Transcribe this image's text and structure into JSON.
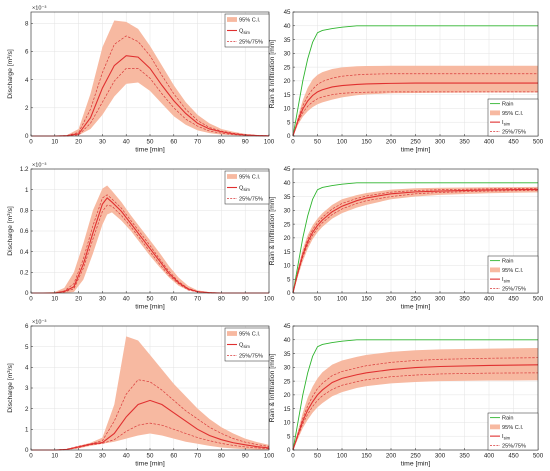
{
  "colors": {
    "band": "#f7b9a1",
    "median": "#e03030",
    "quart": "#d93a3a",
    "rain": "#2fb52f",
    "axis": "#262626",
    "grid": "#e3e3e3"
  },
  "chart_data": [
    {
      "type": "area",
      "panel": "a",
      "ylabel": "Discharge [m³/s]",
      "xlabel": "time [min]",
      "exponent": "×10⁻³",
      "xlim": [
        0,
        100
      ],
      "ylim": [
        0,
        8.8
      ],
      "xticks": [
        0,
        10,
        20,
        30,
        40,
        50,
        60,
        70,
        80,
        90,
        100
      ],
      "yticks": [
        0,
        2,
        4,
        6,
        8
      ],
      "legend": [
        "95% C.I.",
        "Q",
        "25%/75%"
      ],
      "legend_sub": "sim",
      "x": [
        0,
        10,
        15,
        20,
        25,
        30,
        35,
        40,
        45,
        50,
        55,
        60,
        65,
        70,
        75,
        80,
        85,
        90,
        95,
        100
      ],
      "series": [
        {
          "role": "ci_low",
          "values": [
            0,
            0,
            0,
            0.05,
            0.5,
            1.5,
            2.8,
            3.7,
            3.8,
            3.2,
            2.3,
            1.4,
            0.8,
            0.4,
            0.2,
            0.1,
            0.05,
            0.02,
            0,
            0
          ]
        },
        {
          "role": "q25",
          "values": [
            0,
            0,
            0,
            0.08,
            0.9,
            2.4,
            3.9,
            4.8,
            4.8,
            4.1,
            3.0,
            2.0,
            1.2,
            0.7,
            0.35,
            0.2,
            0.1,
            0.05,
            0.02,
            0
          ]
        },
        {
          "role": "median",
          "values": [
            0,
            0,
            0.02,
            0.15,
            1.3,
            3.4,
            5.0,
            5.7,
            5.6,
            4.8,
            3.6,
            2.5,
            1.6,
            0.9,
            0.5,
            0.3,
            0.15,
            0.07,
            0.03,
            0.01
          ]
        },
        {
          "role": "q75",
          "values": [
            0,
            0,
            0.03,
            0.25,
            1.9,
            4.5,
            6.5,
            7.1,
            6.7,
            5.7,
            4.3,
            3.0,
            1.9,
            1.1,
            0.6,
            0.35,
            0.2,
            0.1,
            0.04,
            0.02
          ]
        },
        {
          "role": "ci_high",
          "values": [
            0,
            0,
            0.05,
            0.5,
            3.0,
            6.3,
            8.2,
            8.1,
            7.6,
            6.4,
            5.0,
            3.6,
            2.4,
            1.5,
            0.9,
            0.5,
            0.3,
            0.15,
            0.07,
            0.03
          ]
        }
      ]
    },
    {
      "type": "line",
      "panel": "b",
      "ylabel": "Rain & Infiltration [mm]",
      "xlabel": "time [min]",
      "xlim": [
        0,
        500
      ],
      "ylim": [
        0,
        45
      ],
      "xticks": [
        0,
        50,
        100,
        150,
        200,
        250,
        300,
        350,
        400,
        450,
        500
      ],
      "yticks": [
        0,
        5,
        10,
        15,
        20,
        25,
        30,
        35,
        40,
        45
      ],
      "legend": [
        "Rain",
        "95% C.I.",
        "I",
        "25%/75%"
      ],
      "legend_sub": "sim",
      "x": [
        0,
        10,
        20,
        30,
        40,
        50,
        60,
        80,
        100,
        130,
        150,
        200,
        250,
        300,
        400,
        500
      ],
      "series": [
        {
          "role": "rain",
          "values": [
            0,
            10,
            20,
            28,
            34,
            37.5,
            38.3,
            39,
            39.5,
            40,
            40,
            40,
            40,
            40,
            40,
            40
          ]
        },
        {
          "role": "ci_low",
          "values": [
            0,
            4,
            7,
            9,
            10.5,
            11.5,
            12.2,
            13.2,
            14,
            14.8,
            15.1,
            15.5,
            15.6,
            15.7,
            15.8,
            15.8
          ]
        },
        {
          "role": "q25",
          "values": [
            0,
            5,
            8.5,
            10.8,
            12.4,
            13.5,
            14.2,
            15,
            15.5,
            15.8,
            15.9,
            16,
            16,
            16,
            16,
            16
          ]
        },
        {
          "role": "median",
          "values": [
            0,
            5.5,
            9.8,
            12.7,
            14.7,
            16,
            16.8,
            17.8,
            18.3,
            18.7,
            18.9,
            19.1,
            19.2,
            19.2,
            19.2,
            19.2
          ]
        },
        {
          "role": "q75",
          "values": [
            0,
            6,
            11,
            14.5,
            17,
            18.7,
            19.8,
            21,
            21.7,
            22.2,
            22.4,
            22.6,
            22.6,
            22.6,
            22.6,
            22.6
          ]
        },
        {
          "role": "ci_high",
          "values": [
            0,
            7,
            13,
            17.5,
            20.5,
            22.2,
            23.2,
            24.3,
            24.9,
            25.3,
            25.4,
            25.5,
            25.5,
            25.5,
            25.5,
            25.5
          ]
        }
      ]
    },
    {
      "type": "area",
      "panel": "c",
      "ylabel": "Discharge [m³/s]",
      "xlabel": "time [min]",
      "exponent": "×10⁻³",
      "xlim": [
        0,
        100
      ],
      "ylim": [
        0,
        1.2
      ],
      "xticks": [
        0,
        10,
        20,
        30,
        40,
        50,
        60,
        70,
        80,
        90,
        100
      ],
      "yticks": [
        0,
        0.2,
        0.4,
        0.6,
        0.8,
        1,
        1.2
      ],
      "legend": [
        "95% C.I.",
        "Q",
        "25%/75%"
      ],
      "legend_sub": "sim",
      "x": [
        0,
        10,
        14,
        18,
        22,
        26,
        30,
        32,
        34,
        38,
        42,
        46,
        50,
        54,
        58,
        62,
        66,
        70,
        75,
        80,
        100
      ],
      "series": [
        {
          "role": "ci_low",
          "values": [
            0,
            0,
            0,
            0.01,
            0.13,
            0.38,
            0.66,
            0.76,
            0.78,
            0.7,
            0.6,
            0.48,
            0.36,
            0.25,
            0.15,
            0.07,
            0.025,
            0.008,
            0,
            0,
            0
          ]
        },
        {
          "role": "q25",
          "values": [
            0,
            0,
            0.01,
            0.04,
            0.24,
            0.52,
            0.79,
            0.85,
            0.84,
            0.75,
            0.64,
            0.52,
            0.4,
            0.28,
            0.17,
            0.09,
            0.03,
            0.01,
            0,
            0,
            0
          ]
        },
        {
          "role": "median",
          "values": [
            0,
            0,
            0.015,
            0.06,
            0.28,
            0.58,
            0.86,
            0.92,
            0.88,
            0.79,
            0.67,
            0.55,
            0.43,
            0.31,
            0.19,
            0.1,
            0.04,
            0.012,
            0.003,
            0,
            0
          ]
        },
        {
          "role": "q75",
          "values": [
            0,
            0,
            0.02,
            0.09,
            0.33,
            0.65,
            0.92,
            0.95,
            0.91,
            0.82,
            0.7,
            0.58,
            0.46,
            0.33,
            0.21,
            0.11,
            0.045,
            0.015,
            0.004,
            0,
            0
          ]
        },
        {
          "role": "ci_high",
          "values": [
            0,
            0.01,
            0.05,
            0.2,
            0.48,
            0.8,
            1.01,
            1.04,
            0.99,
            0.88,
            0.75,
            0.63,
            0.51,
            0.39,
            0.26,
            0.15,
            0.07,
            0.025,
            0.008,
            0.002,
            0
          ]
        }
      ]
    },
    {
      "type": "line",
      "panel": "d",
      "ylabel": "Rain & Infiltration [mm]",
      "xlabel": "time [min]",
      "xlim": [
        0,
        500
      ],
      "ylim": [
        0,
        45
      ],
      "xticks": [
        0,
        50,
        100,
        150,
        200,
        250,
        300,
        350,
        400,
        450,
        500
      ],
      "yticks": [
        0,
        5,
        10,
        15,
        20,
        25,
        30,
        35,
        40,
        45
      ],
      "legend": [
        "Rain",
        "95% C.I.",
        "I",
        "25%/75%"
      ],
      "legend_sub": "sim",
      "x": [
        0,
        10,
        20,
        30,
        40,
        50,
        60,
        80,
        100,
        130,
        150,
        200,
        250,
        300,
        400,
        500
      ],
      "series": [
        {
          "role": "rain",
          "values": [
            0,
            10,
            20,
            28,
            34,
            37.5,
            38.3,
            39,
            39.5,
            40,
            40,
            40,
            40,
            40,
            40,
            40
          ]
        },
        {
          "role": "ci_low",
          "values": [
            0,
            6,
            11.5,
            16,
            19.5,
            22,
            24,
            27,
            29,
            31,
            32,
            34,
            35,
            35.6,
            36.2,
            36.5
          ]
        },
        {
          "role": "q25",
          "values": [
            0,
            7,
            13,
            17.5,
            21,
            23.5,
            25.5,
            28.5,
            30.5,
            32.5,
            33.5,
            35,
            36,
            36.5,
            37,
            37.2
          ]
        },
        {
          "role": "median",
          "values": [
            0,
            7.5,
            13.8,
            18.5,
            22,
            24.5,
            26.5,
            29.5,
            31.5,
            33.5,
            34.5,
            36,
            36.7,
            37,
            37.4,
            37.6
          ]
        },
        {
          "role": "q75",
          "values": [
            0,
            8,
            14.5,
            19.5,
            23,
            25.5,
            27.5,
            30.5,
            32.5,
            34.3,
            35.2,
            36.6,
            37.2,
            37.5,
            37.8,
            38
          ]
        },
        {
          "role": "ci_high",
          "values": [
            0,
            9,
            16,
            21,
            24.5,
            27,
            29,
            32,
            34,
            35.5,
            36.3,
            37.5,
            38,
            38.2,
            38.4,
            38.5
          ]
        }
      ]
    },
    {
      "type": "area",
      "panel": "e",
      "ylabel": "Discharge [m³/s]",
      "xlabel": "time [min]",
      "exponent": "×10⁻³",
      "xlim": [
        0,
        100
      ],
      "ylim": [
        0,
        6
      ],
      "xticks": [
        0,
        10,
        20,
        30,
        40,
        50,
        60,
        70,
        80,
        90,
        100
      ],
      "yticks": [
        0,
        1,
        2,
        3,
        4,
        5,
        6
      ],
      "legend": [
        "95% C.I.",
        "Q",
        "25%/75%"
      ],
      "legend_sub": "sim",
      "x": [
        0,
        10,
        15,
        20,
        25,
        30,
        35,
        40,
        45,
        50,
        55,
        60,
        65,
        70,
        75,
        80,
        85,
        90,
        95,
        100
      ],
      "series": [
        {
          "role": "ci_low",
          "values": [
            0,
            0,
            0,
            0.08,
            0.2,
            0.3,
            0.4,
            0.55,
            0.7,
            0.8,
            0.7,
            0.55,
            0.4,
            0.3,
            0.2,
            0.12,
            0.07,
            0.04,
            0.02,
            0.01
          ]
        },
        {
          "role": "q25",
          "values": [
            0,
            0,
            0.02,
            0.12,
            0.25,
            0.32,
            0.5,
            0.9,
            1.2,
            1.3,
            1.2,
            1.0,
            0.8,
            0.6,
            0.45,
            0.32,
            0.22,
            0.15,
            0.1,
            0.06
          ]
        },
        {
          "role": "median",
          "values": [
            0,
            0,
            0.03,
            0.15,
            0.28,
            0.36,
            0.8,
            1.6,
            2.2,
            2.4,
            2.2,
            1.8,
            1.4,
            1.0,
            0.7,
            0.5,
            0.35,
            0.25,
            0.16,
            0.1
          ]
        },
        {
          "role": "q75",
          "values": [
            0,
            0,
            0.04,
            0.18,
            0.3,
            0.45,
            1.4,
            2.7,
            3.4,
            3.3,
            2.9,
            2.4,
            1.9,
            1.5,
            1.1,
            0.8,
            0.55,
            0.38,
            0.26,
            0.17
          ]
        },
        {
          "role": "ci_high",
          "values": [
            0,
            0,
            0.05,
            0.2,
            0.35,
            0.6,
            2.2,
            5.5,
            5.3,
            4.6,
            3.9,
            3.2,
            2.6,
            2.0,
            1.5,
            1.1,
            0.8,
            0.55,
            0.38,
            0.25
          ]
        }
      ]
    },
    {
      "type": "line",
      "panel": "f",
      "ylabel": "Rain & Infiltration [mm]",
      "xlabel": "time [min]",
      "xlim": [
        0,
        500
      ],
      "ylim": [
        0,
        45
      ],
      "xticks": [
        0,
        50,
        100,
        150,
        200,
        250,
        300,
        350,
        400,
        450,
        500
      ],
      "yticks": [
        0,
        5,
        10,
        15,
        20,
        25,
        30,
        35,
        40,
        45
      ],
      "legend": [
        "Rain",
        "95% C.I.",
        "I",
        "25%/75%"
      ],
      "legend_sub": "sim",
      "x": [
        0,
        10,
        20,
        30,
        40,
        50,
        60,
        80,
        100,
        130,
        150,
        200,
        250,
        300,
        400,
        500
      ],
      "series": [
        {
          "role": "rain",
          "values": [
            0,
            10,
            20,
            28,
            34,
            37.5,
            38.3,
            39,
            39.5,
            40,
            40,
            40,
            40,
            40,
            40,
            40
          ]
        },
        {
          "role": "ci_low",
          "values": [
            0,
            4,
            8,
            11,
            13.5,
            15.5,
            17,
            19.5,
            21,
            22.5,
            23.2,
            24.2,
            24.7,
            25,
            25.2,
            25.3
          ]
        },
        {
          "role": "q25",
          "values": [
            0,
            5,
            9.5,
            13,
            15.8,
            18,
            19.7,
            22,
            23.5,
            24.8,
            25.5,
            26.6,
            27.2,
            27.6,
            27.9,
            28
          ]
        },
        {
          "role": "median",
          "values": [
            0,
            5.5,
            10.5,
            14.5,
            17.5,
            20,
            21.8,
            24.5,
            26,
            27.3,
            28,
            29.2,
            29.9,
            30.3,
            30.7,
            30.9
          ]
        },
        {
          "role": "q75",
          "values": [
            0,
            6,
            11.5,
            16,
            19.5,
            22.3,
            24.2,
            27,
            28.5,
            29.8,
            30.6,
            31.8,
            32.5,
            32.9,
            33.3,
            33.5
          ]
        },
        {
          "role": "ci_high",
          "values": [
            0,
            7,
            13.5,
            19,
            23,
            26,
            28.2,
            31,
            32.5,
            33.8,
            34.5,
            35.6,
            36.2,
            36.5,
            36.8,
            37
          ]
        }
      ]
    }
  ]
}
